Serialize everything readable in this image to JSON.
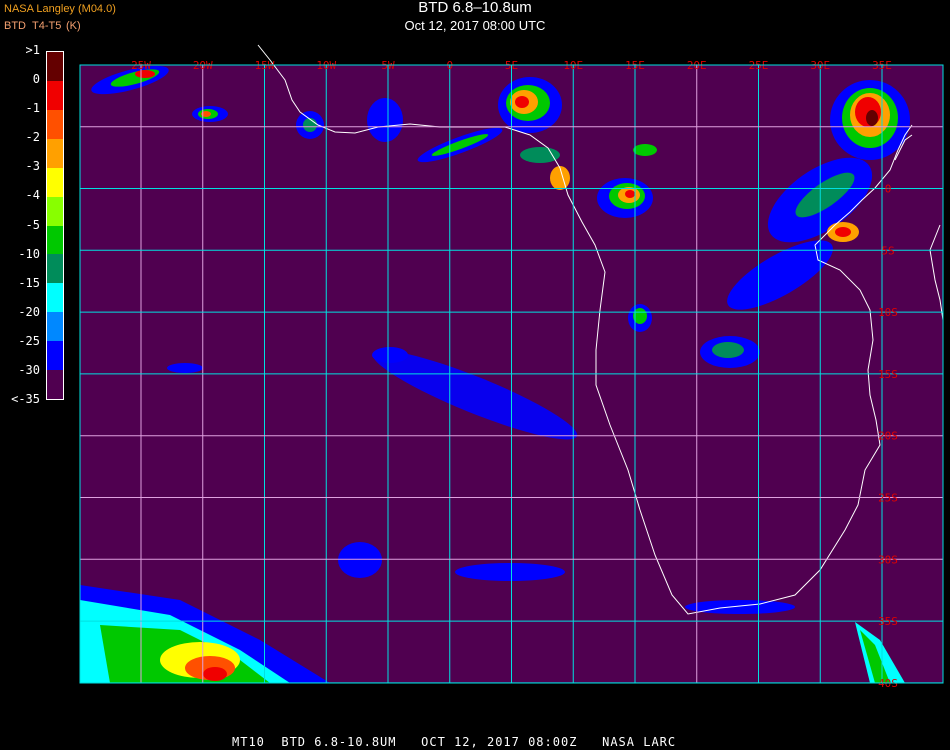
{
  "header": {
    "title": "BTD 6.8–10.8um",
    "subtitle": "Oct 12, 2017 08:00 UTC",
    "organization": "NASA Langley (M04.0)",
    "legend_title": "BTD",
    "legend_units_a": "T4-T5",
    "legend_units_b": "(K)"
  },
  "legend": {
    "labels": [
      ">1",
      "0",
      "-1",
      "-2",
      "-3",
      "-4",
      "-5",
      "-10",
      "-15",
      "-20",
      "-25",
      "-30",
      "<-35"
    ],
    "colors": [
      "#640000",
      "#f00000",
      "#ff5000",
      "#ffa000",
      "#ffff00",
      "#88ff00",
      "#00c800",
      "#008c5a",
      "#00ffff",
      "#0088ff",
      "#0000ff",
      "#500050"
    ]
  },
  "map": {
    "background_color": "#500050",
    "grid_color_primary": "#00e0e0",
    "grid_color_secondary": "#e0a0e0",
    "coastline_color": "#ffffff",
    "label_color": "#e00000",
    "lon_labels": [
      "25W",
      "20W",
      "15W",
      "10W",
      "5W",
      "0",
      "5E",
      "10E",
      "15E",
      "20E",
      "25E",
      "30E",
      "35E"
    ],
    "lat_labels": [
      "0",
      "5S",
      "10S",
      "15S",
      "20S",
      "25S",
      "30S",
      "35S",
      "40S"
    ]
  },
  "footer": {
    "text": "MT10  BTD 6.8-10.8UM   OCT 12, 2017 08:00Z   NASA LARC"
  }
}
